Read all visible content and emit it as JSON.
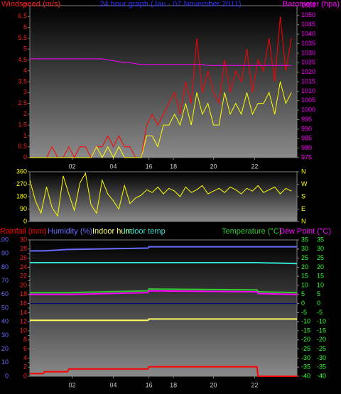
{
  "chart_data": [
    {
      "type": "line",
      "title": "24 hour graph (Jau - 07 November 2011)",
      "ylabel": "Windspeed (m/s)",
      "y2label": "Barometer (hpa)",
      "x": [
        0,
        0.5,
        1,
        1.5,
        2,
        2.5,
        3,
        3.5,
        4,
        4.5,
        5,
        5.5,
        6,
        6.5,
        7,
        7.5,
        8,
        8.5,
        9,
        9.5,
        10,
        10.5,
        11,
        11.5,
        12,
        12.5,
        13,
        13.5,
        14,
        14.5,
        15,
        15.5,
        16,
        16.5,
        17,
        17.5,
        18,
        18.5,
        19,
        19.5,
        20,
        20.5,
        21,
        21.5,
        22,
        22.5,
        23,
        23.5
      ],
      "xlim": [
        0,
        24
      ],
      "xticks": [
        {
          "value": 3.8,
          "label": "02"
        },
        {
          "value": 7.5,
          "label": "04"
        },
        {
          "value": 10.7,
          "label": "16"
        },
        {
          "value": 12.9,
          "label": "18"
        },
        {
          "value": 16.5,
          "label": "20"
        },
        {
          "value": 20.2,
          "label": "22"
        }
      ],
      "ylim": [
        0,
        7
      ],
      "yticks": [
        0,
        0.5,
        1,
        1.5,
        2,
        2.5,
        3,
        3.5,
        4,
        4.5,
        5,
        5.5,
        6,
        6.5,
        7
      ],
      "ycolor": "#ff2020",
      "y2lim": [
        975,
        1055
      ],
      "y2ticks": [
        975,
        980,
        985,
        990,
        995,
        1000,
        1005,
        1010,
        1015,
        1020,
        1025,
        1030,
        1035,
        1040,
        1045,
        1050,
        1055
      ],
      "y2color": "#ff00ff",
      "series": [
        {
          "color": "#ff0000",
          "values": [
            0,
            0,
            0,
            0,
            0.5,
            0,
            0,
            0.5,
            0,
            0.5,
            0.5,
            0,
            0.5,
            0.5,
            1,
            0.5,
            1,
            0.5,
            0.5,
            0,
            0,
            1.5,
            2,
            1.5,
            2,
            2.5,
            3,
            2,
            3.5,
            2.5,
            5.5,
            3,
            4,
            3,
            2.5,
            4.5,
            3,
            4,
            3.5,
            5,
            3,
            4.5,
            4,
            5.5,
            3.5,
            6.5,
            4,
            5.5
          ]
        },
        {
          "color": "#ffff00",
          "values": [
            0,
            0,
            0,
            0,
            0,
            0,
            0,
            0,
            0,
            0,
            0,
            0,
            0.5,
            0,
            0.5,
            0,
            0.5,
            0,
            0,
            0,
            0,
            1,
            1,
            0.5,
            1.5,
            1.5,
            2,
            1.5,
            2.5,
            1.5,
            3,
            2,
            2.5,
            1.5,
            1.5,
            3,
            2,
            2.5,
            2,
            3,
            2,
            2.5,
            2.5,
            3,
            2,
            3.5,
            2.5,
            3
          ]
        },
        {
          "color": "#ff00ff",
          "axis": "y2",
          "values": [
            1027,
            1027,
            1027,
            1027,
            1027,
            1027,
            1027,
            1027,
            1027,
            1027,
            1027,
            1027,
            1027,
            1027,
            1026.5,
            1026,
            1025.5,
            1025,
            1025,
            1024.5,
            1024,
            1024,
            1024,
            1024,
            1024,
            1024,
            1024,
            1024,
            1024,
            1024,
            1024,
            1024,
            1023.5,
            1023.5,
            1023.5,
            1023.5,
            1023.5,
            1023.5,
            1023.5,
            1023.5,
            1023.5,
            1023.5,
            1023.5,
            1023.5,
            1023.5,
            1023.5,
            1023.5,
            1023.5
          ]
        }
      ]
    },
    {
      "type": "line",
      "x": [
        0,
        0.5,
        1,
        1.5,
        2,
        2.5,
        3,
        3.5,
        4,
        4.5,
        5,
        5.5,
        6,
        6.5,
        7,
        7.5,
        8,
        8.5,
        9,
        9.5,
        10,
        10.5,
        11,
        11.5,
        12,
        12.5,
        13,
        13.5,
        14,
        14.5,
        15,
        15.5,
        16,
        16.5,
        17,
        17.5,
        18,
        18.5,
        19,
        19.5,
        20,
        20.5,
        21,
        21.5,
        22,
        22.5,
        23,
        23.5
      ],
      "xlim": [
        0,
        24
      ],
      "ylim": [
        0,
        360
      ],
      "yticks": [
        0,
        90,
        180,
        270,
        360
      ],
      "ycolor": "#ffff00",
      "y2lim": [
        0,
        360
      ],
      "y2ticks": [
        {
          "value": 0,
          "label": "N"
        },
        {
          "value": 90,
          "label": "E"
        },
        {
          "value": 180,
          "label": "S"
        },
        {
          "value": 270,
          "label": "W"
        },
        {
          "value": 360,
          "label": "N"
        }
      ],
      "y2color": "#ffff00",
      "series": [
        {
          "color": "#ffff00",
          "values": [
            300,
            150,
            60,
            250,
            100,
            40,
            330,
            200,
            80,
            280,
            350,
            120,
            60,
            300,
            200,
            150,
            90,
            260,
            130,
            170,
            190,
            230,
            210,
            250,
            200,
            240,
            220,
            180,
            250,
            210,
            230,
            260,
            200,
            220,
            240,
            210,
            250,
            230,
            200,
            240,
            220,
            260,
            210,
            230,
            250,
            200,
            240,
            220
          ]
        }
      ]
    },
    {
      "type": "line",
      "x": [
        0,
        1.2,
        1.3,
        3.4,
        3.5,
        10.6,
        10.7,
        20.4,
        20.5,
        24
      ],
      "xlim": [
        0,
        24
      ],
      "xticks": [
        {
          "value": 3.8,
          "label": "02"
        },
        {
          "value": 7.5,
          "label": "04"
        },
        {
          "value": 10.7,
          "label": "16"
        },
        {
          "value": 12.9,
          "label": "18"
        },
        {
          "value": 16.5,
          "label": "20"
        },
        {
          "value": 20.2,
          "label": "22"
        }
      ],
      "ylim": [
        0,
        30
      ],
      "yticks": [
        0,
        2,
        4,
        6,
        8,
        10,
        12,
        14,
        16,
        18,
        20,
        22,
        24,
        26,
        28,
        30
      ],
      "ycolor": "#ff2020",
      "y3lim": [
        0,
        100
      ],
      "y3ticks": [
        0,
        10,
        20,
        30,
        40,
        50,
        60,
        70,
        80,
        90,
        100
      ],
      "y3color": "#7070ff",
      "y2lim": [
        -40,
        35
      ],
      "y2ticks": [
        35,
        30,
        25,
        20,
        15,
        10,
        5,
        0,
        -5,
        -10,
        -15,
        -20,
        -25,
        -30,
        -35,
        -40
      ],
      "y2color": "#33ff33",
      "y4lim": [
        -40,
        35
      ],
      "y4ticks": [
        35,
        30,
        25,
        20,
        15,
        10,
        5,
        0,
        -5,
        -10,
        -15,
        -20,
        -25,
        -30,
        -35,
        -40
      ],
      "y4color": "#33ff33",
      "series": [
        {
          "name": "Rainfall (mm)",
          "color": "#ff0000",
          "values": [
            0.6,
            0.6,
            1,
            1,
            1.6,
            1.6,
            2.1,
            2.1,
            0,
            0
          ]
        },
        {
          "name": "Humidity (%)",
          "color": "#6a6aff",
          "axis": "y3",
          "values": [
            92,
            92,
            92,
            93,
            93,
            94,
            95,
            95,
            95,
            95
          ]
        },
        {
          "name": "Indoor hum",
          "color": "#ffff66",
          "axis": "y3",
          "values": [
            41,
            41,
            41,
            41,
            41,
            41,
            42,
            42,
            42,
            42
          ]
        },
        {
          "name": "Indoor temp",
          "color": "#30e0d0",
          "axis": "y2",
          "values": [
            22.5,
            22.5,
            22.5,
            22.5,
            22.5,
            22.5,
            22.5,
            22.5,
            22.5,
            22
          ]
        },
        {
          "name": "Temperature (°C)",
          "color": "#33cc33",
          "axis": "y2",
          "values": [
            6,
            6,
            6,
            6,
            6,
            7,
            8,
            7.5,
            6.5,
            6
          ]
        },
        {
          "name": "Dew Point (°C)",
          "color": "#ff00ff",
          "axis": "y2",
          "values": [
            5,
            5,
            5,
            5,
            5,
            6,
            7,
            6.5,
            5.5,
            5
          ]
        }
      ]
    }
  ]
}
